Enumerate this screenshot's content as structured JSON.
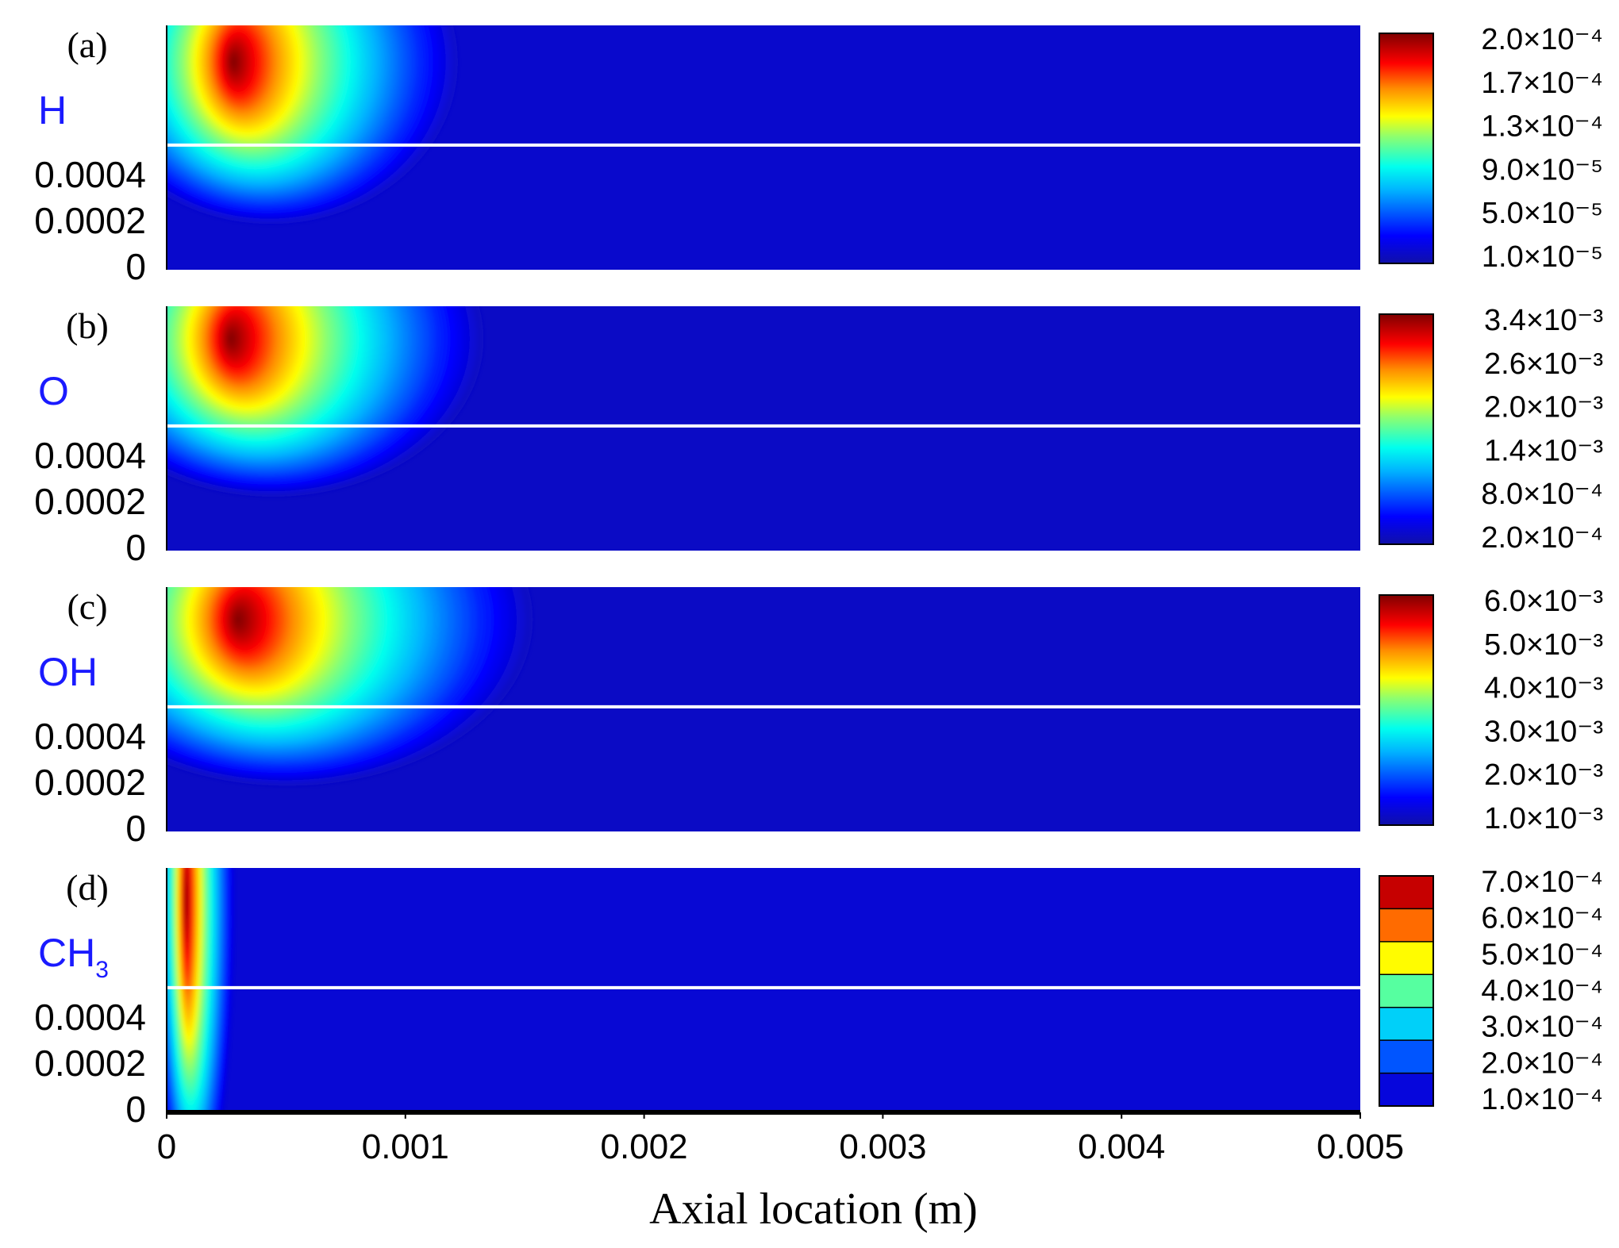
{
  "chart_data": [
    {
      "type": "heatmap",
      "panel_label": "(a)",
      "species": "H",
      "species_sub": "",
      "colorbar_ticks": [
        "2.0×10⁻⁴",
        "1.7×10⁻⁴",
        "1.3×10⁻⁴",
        "9.0×10⁻⁵",
        "5.0×10⁻⁵",
        "1.0×10⁻⁵"
      ],
      "colorbar_style": "continuous",
      "range": [
        1e-05,
        0.0002
      ],
      "hotspot": {
        "x": 0.00028,
        "r": 0.00051,
        "rx": 0.00032,
        "ry": 0.00039,
        "bg": 0.05,
        "base_x": 0.0
      },
      "y_ticks": [
        "0.0004",
        "0.0002",
        "0"
      ],
      "xlim": [
        0,
        0.005
      ]
    },
    {
      "type": "heatmap",
      "panel_label": "(b)",
      "species": "O",
      "species_sub": "",
      "colorbar_ticks": [
        "3.4×10⁻³",
        "2.6×10⁻³",
        "2.0×10⁻³",
        "1.4×10⁻³",
        "8.0×10⁻⁴",
        "2.0×10⁻⁴"
      ],
      "colorbar_style": "continuous",
      "range": [
        0.0002,
        0.0034
      ],
      "hotspot": {
        "x": 0.00027,
        "r": 0.00052,
        "rx": 0.00036,
        "ry": 0.00038,
        "bg": 0.04,
        "base_x": 0.0
      },
      "y_ticks": [
        "0.0004",
        "0.0002",
        "0"
      ],
      "xlim": [
        0,
        0.005
      ]
    },
    {
      "type": "heatmap",
      "panel_label": "(c)",
      "species": "OH",
      "species_sub": "",
      "colorbar_ticks": [
        "6.0×10⁻³",
        "5.0×10⁻³",
        "4.0×10⁻³",
        "3.0×10⁻³",
        "2.0×10⁻³",
        "1.0×10⁻³"
      ],
      "colorbar_style": "continuous",
      "range": [
        0.001,
        0.006
      ],
      "hotspot": {
        "x": 0.0003,
        "r": 0.00052,
        "rx": 0.00042,
        "ry": 0.0004,
        "bg": 0.04,
        "base_x": 0.0
      },
      "y_ticks": [
        "0.0004",
        "0.0002",
        "0"
      ],
      "xlim": [
        0,
        0.005
      ]
    },
    {
      "type": "heatmap",
      "panel_label": "(d)",
      "species": "CH",
      "species_sub": "3",
      "colorbar_ticks": [
        "7.0×10⁻⁴",
        "6.0×10⁻⁴",
        "5.0×10⁻⁴",
        "4.0×10⁻⁴",
        "3.0×10⁻⁴",
        "2.0×10⁻⁴",
        "1.0×10⁻⁴"
      ],
      "colorbar_style": "banded",
      "range": [
        0.0001,
        0.0007
      ],
      "hotspot": {
        "x": 8e-05,
        "r": 0.00052,
        "rx": 7e-05,
        "ry": 0.00075,
        "bg": 0.06,
        "base_x": 0.0
      },
      "y_ticks": [
        "0.0004",
        "0.0002",
        "0"
      ],
      "xlim": [
        0,
        0.005
      ]
    }
  ],
  "x_axis": {
    "label": "Axial location (m)",
    "ticks": [
      "0",
      "0.001",
      "0.002",
      "0.003",
      "0.004",
      "0.005"
    ],
    "values": [
      0,
      0.001,
      0.002,
      0.003,
      0.004,
      0.005
    ]
  }
}
